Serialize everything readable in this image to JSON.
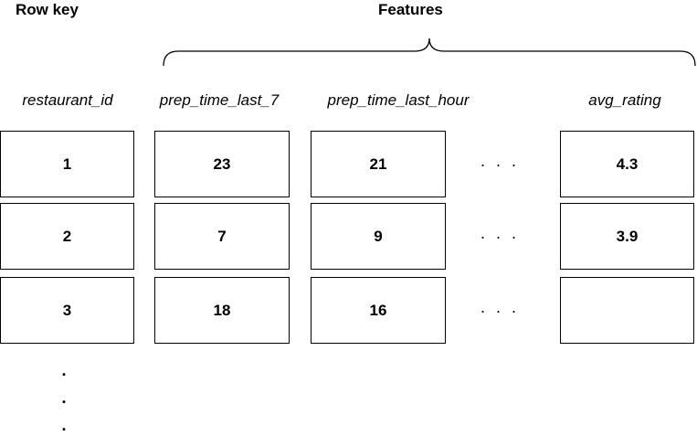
{
  "headings": {
    "row_key": "Row key",
    "features": "Features"
  },
  "columns": [
    "restaurant_id",
    "prep_time_last_7",
    "prep_time_last_hour",
    "avg_rating"
  ],
  "ellipsis": "· · ·",
  "rows": [
    {
      "restaurant_id": "1",
      "prep_time_last_7": "23",
      "prep_time_last_hour": "21",
      "avg_rating": "4.3"
    },
    {
      "restaurant_id": "2",
      "prep_time_last_7": "7",
      "prep_time_last_hour": "9",
      "avg_rating": "3.9"
    },
    {
      "restaurant_id": "3",
      "prep_time_last_7": "18",
      "prep_time_last_hour": "16",
      "avg_rating": ""
    }
  ],
  "vertical_continuation": [
    ".",
    ".",
    "."
  ]
}
